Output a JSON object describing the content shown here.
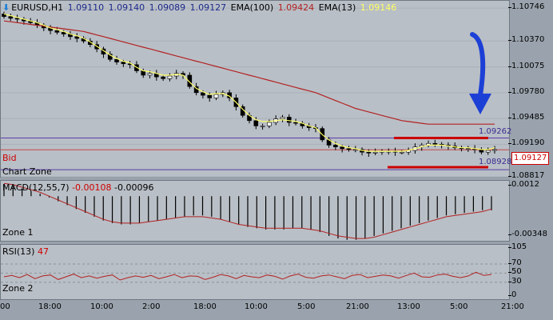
{
  "header": {
    "symbol": "EURUSD,H1",
    "ohlc": [
      "1.09110",
      "1.09140",
      "1.09089",
      "1.09127"
    ],
    "ema100_label": "EMA(100)",
    "ema100_value": "1.09424",
    "ema13_label": "EMA(13)",
    "ema13_value": "1.09146"
  },
  "labels": {
    "bid": "Bid",
    "chart_zone": "Chart Zone",
    "zone1": "Zone 1",
    "zone2": "Zone 2",
    "macd_title": "MACD(12,55,7)",
    "macd_v1": "-0.00108",
    "macd_v2": "-0.00096",
    "rsi_title": "RSI(13)",
    "rsi_value": "47",
    "level_high": "1.09262",
    "level_low": "1.08928",
    "bid_badge": "1.09127"
  },
  "colors": {
    "ema100": "#b22222",
    "ema13": "#ffff66",
    "bull": "#ffffff",
    "bear": "#000000",
    "resistance": "#cc0000",
    "arrow": "#1c3fd6",
    "purple": "#5a3ea8"
  },
  "chart_data": [
    {
      "type": "candlestick",
      "symbol": "EURUSD",
      "timeframe": "H1",
      "y_ticks": [
        "1.10746",
        "1.10370",
        "1.10075",
        "1.09780",
        "1.09485",
        "1.09190",
        "1.08817"
      ],
      "ylim": [
        1.088,
        1.1083
      ],
      "x_ticks": [
        "00",
        "18:00",
        "10:00",
        "2:00",
        "18:00",
        "10:00",
        "5:00",
        "21:00",
        "13:00",
        "5:00",
        "21:00"
      ],
      "close": [
        1.1065,
        1.1063,
        1.1062,
        1.106,
        1.1058,
        1.1055,
        1.1052,
        1.1049,
        1.1047,
        1.1045,
        1.1042,
        1.104,
        1.1037,
        1.1033,
        1.1028,
        1.1022,
        1.1016,
        1.1013,
        1.1011,
        1.101,
        1.1003,
        1.0998,
        1.1,
        1.0996,
        1.0994,
        1.0997,
        1.1,
        1.0998,
        1.0985,
        1.0978,
        1.0975,
        1.0972,
        1.0976,
        1.0978,
        1.0972,
        1.0962,
        1.0952,
        1.0946,
        1.094,
        1.094,
        1.0944,
        1.0948,
        1.095,
        1.0944,
        1.0943,
        1.094,
        1.0938,
        1.0937,
        1.0924,
        1.0918,
        1.0916,
        1.0914,
        1.0913,
        1.0913,
        1.091,
        1.0909,
        1.091,
        1.0911,
        1.0911,
        1.091,
        1.091,
        1.0912,
        1.0916,
        1.0918,
        1.092,
        1.0919,
        1.0918,
        1.0917,
        1.0915,
        1.0914,
        1.0914,
        1.0913,
        1.091,
        1.0912,
        1.0913
      ],
      "ema13": [
        1.1068,
        1.1066,
        1.1064,
        1.1062,
        1.106,
        1.1058,
        1.1055,
        1.1052,
        1.105,
        1.1048,
        1.1045,
        1.1043,
        1.104,
        1.1036,
        1.1031,
        1.1026,
        1.1021,
        1.1017,
        1.1014,
        1.1012,
        1.1007,
        1.1003,
        1.1002,
        1.1,
        1.0998,
        1.0998,
        1.0999,
        1.0998,
        1.099,
        1.0983,
        1.0979,
        1.0976,
        1.0977,
        1.0977,
        1.0974,
        1.0967,
        1.0959,
        1.0952,
        1.0947,
        1.0945,
        1.0945,
        1.0946,
        1.0947,
        1.0946,
        1.0945,
        1.0943,
        1.094,
        1.0938,
        1.093,
        1.0924,
        1.092,
        1.0917,
        1.0915,
        1.0914,
        1.0912,
        1.0911,
        1.0911,
        1.0911,
        1.0911,
        1.0911,
        1.0911,
        1.0912,
        1.0914,
        1.0916,
        1.0918,
        1.0918,
        1.0918,
        1.0917,
        1.0916,
        1.0915,
        1.0915,
        1.0914,
        1.0913,
        1.0913,
        1.0915
      ],
      "ema100": [
        1.106,
        1.1059,
        1.1058,
        1.1057,
        1.1056,
        1.1055,
        1.1054,
        1.1053,
        1.1052,
        1.1051,
        1.105,
        1.1049,
        1.1048,
        1.1046,
        1.1044,
        1.1042,
        1.104,
        1.1038,
        1.1036,
        1.1034,
        1.1032,
        1.103,
        1.1028,
        1.1026,
        1.1024,
        1.1022,
        1.102,
        1.1018,
        1.1016,
        1.1014,
        1.1012,
        1.101,
        1.1008,
        1.1006,
        1.1004,
        1.1002,
        1.1,
        1.0998,
        1.0996,
        1.0994,
        1.0992,
        1.099,
        1.0988,
        1.0986,
        1.0984,
        1.0982,
        1.098,
        1.0978,
        1.0975,
        1.0972,
        1.0969,
        1.0966,
        1.0963,
        1.096,
        1.0958,
        1.0956,
        1.0954,
        1.0952,
        1.095,
        1.0948,
        1.0946,
        1.0945,
        1.0944,
        1.0943,
        1.0942,
        1.0942,
        1.0942,
        1.0942,
        1.0942,
        1.0942,
        1.0942,
        1.0942,
        1.0942,
        1.0942,
        1.0942
      ],
      "levels": {
        "resistance": 1.09262,
        "support": 1.08928,
        "bid": 1.09127,
        "purple_upper": 1.09262,
        "purple_lower": 1.089
      }
    },
    {
      "type": "bar",
      "name": "MACD(12,55,7)",
      "y_ticks": [
        "0.0012",
        "-0.00348"
      ],
      "ylim": [
        -0.00348,
        0.0012
      ],
      "values": [
        0.0009,
        0.0008,
        0.0006,
        0.0004,
        0.0002,
        -0.0001,
        -0.0004,
        -0.0007,
        -0.001,
        -0.0013,
        -0.0016,
        -0.0019,
        -0.0021,
        -0.0022,
        -0.0022,
        -0.0021,
        -0.002,
        -0.0019,
        -0.0018,
        -0.0017,
        -0.0016,
        -0.0015,
        -0.0015,
        -0.0016,
        -0.0018,
        -0.002,
        -0.0022,
        -0.0024,
        -0.0025,
        -0.0026,
        -0.0026,
        -0.0026,
        -0.0025,
        -0.0025,
        -0.0026,
        -0.0028,
        -0.0031,
        -0.0033,
        -0.0034,
        -0.0034,
        -0.0033,
        -0.0031,
        -0.0029,
        -0.0027,
        -0.0025,
        -0.0023,
        -0.0021,
        -0.0019,
        -0.0017,
        -0.0015,
        -0.0014,
        -0.0013,
        -0.0012,
        -0.0011,
        -0.0011
      ],
      "signal": [
        0.001,
        0.0009,
        0.0007,
        0.0005,
        0.0003,
        0.0,
        -0.0003,
        -0.0006,
        -0.0009,
        -0.0012,
        -0.0015,
        -0.0018,
        -0.002,
        -0.0021,
        -0.0021,
        -0.0021,
        -0.002,
        -0.0019,
        -0.0018,
        -0.0017,
        -0.0016,
        -0.0016,
        -0.0016,
        -0.0017,
        -0.0018,
        -0.002,
        -0.0022,
        -0.0023,
        -0.0024,
        -0.0025,
        -0.0025,
        -0.0025,
        -0.0025,
        -0.0025,
        -0.0026,
        -0.0027,
        -0.0029,
        -0.0031,
        -0.0032,
        -0.0033,
        -0.0033,
        -0.0032,
        -0.003,
        -0.0028,
        -0.0026,
        -0.0024,
        -0.0022,
        -0.002,
        -0.0018,
        -0.0016,
        -0.0015,
        -0.0014,
        -0.0013,
        -0.0012,
        -0.001
      ]
    },
    {
      "type": "line",
      "name": "RSI(13)",
      "y_ticks": [
        "105",
        "70",
        "50",
        "30",
        "0"
      ],
      "ylim": [
        0,
        105
      ],
      "values": [
        42,
        45,
        40,
        47,
        38,
        44,
        46,
        36,
        42,
        48,
        40,
        44,
        39,
        43,
        46,
        35,
        40,
        44,
        41,
        45,
        38,
        42,
        47,
        40,
        44,
        43,
        36,
        41,
        47,
        44,
        38,
        45,
        42,
        40,
        46,
        43,
        37,
        44,
        48,
        41,
        39,
        44,
        46,
        42,
        38,
        45,
        47,
        40,
        43,
        46,
        44,
        39,
        45,
        50,
        42,
        41,
        46,
        48,
        43,
        40,
        44,
        52,
        45,
        47
      ]
    }
  ]
}
